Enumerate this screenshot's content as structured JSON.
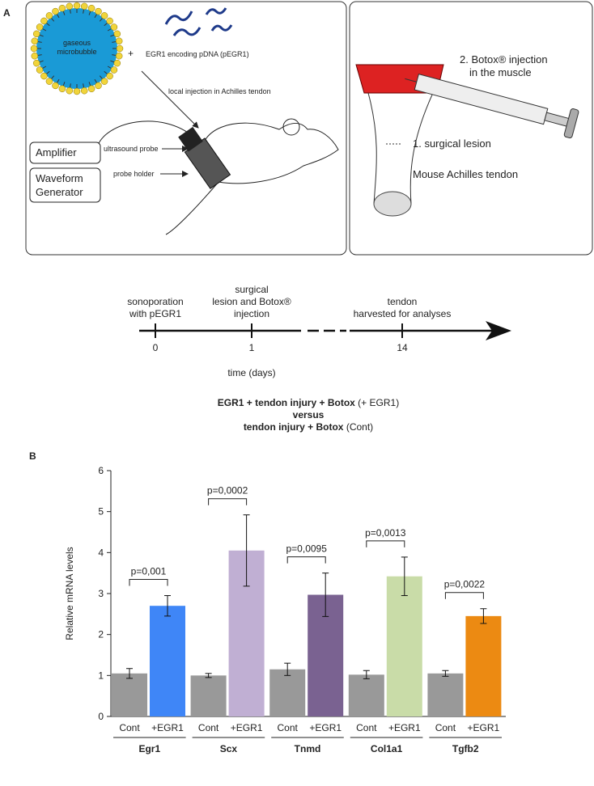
{
  "panel_a": {
    "label": "A",
    "microbubble": [
      "gaseous",
      "microbubble"
    ],
    "plus": "+",
    "plasmid": "EGR1 encoding pDNA (pEGR1)",
    "injection": "local injection in Achilles tendon",
    "amplifier": "Amplifier",
    "probe": "ultrasound probe",
    "generator": [
      "Waveform",
      "Generator"
    ],
    "holder": "probe holder",
    "botox": [
      "2. Botox® injection",
      "in the muscle"
    ],
    "lesion": "1. surgical lesion",
    "tendon": "Mouse Achilles tendon"
  },
  "timeline": {
    "events": [
      {
        "text": [
          "sonoporation",
          "with pEGR1"
        ],
        "tick": "0"
      },
      {
        "text": [
          "surgical",
          "lesion and Botox®",
          "injection"
        ],
        "tick": "1"
      },
      {
        "text": [
          "tendon",
          "harvested for analyses"
        ],
        "tick": "14"
      }
    ],
    "axis_label": "time (days)"
  },
  "chart_data": {
    "type": "bar",
    "panel_label": "B",
    "title": [
      {
        "bold": "EGR1 + tendon injury + Botox",
        "normal": "(+ EGR1)"
      },
      {
        "bold": "versus"
      },
      {
        "bold": "tendon injury + Botox",
        "normal": "(Cont)"
      }
    ],
    "ylabel": "Relative mRNA levels",
    "categories": [
      "Egr1",
      "Scx",
      "Tnmd",
      "Col1a1",
      "Tgfb2"
    ],
    "series": [
      {
        "name": "Cont",
        "color": "#999999",
        "values": [
          1.05,
          1.0,
          1.15,
          1.02,
          1.05
        ],
        "errors": [
          0.12,
          0.05,
          0.15,
          0.1,
          0.07
        ]
      },
      {
        "name": "+EGR1",
        "colors": [
          "#3f86f7",
          "#c0afd3",
          "#7a6291",
          "#c9dca8",
          "#ec8a12"
        ],
        "values": [
          2.7,
          4.05,
          2.97,
          3.42,
          2.45
        ],
        "errors": [
          0.25,
          0.87,
          0.53,
          0.47,
          0.18
        ]
      }
    ],
    "p_values": [
      "p=0,001",
      "p=0,0002",
      "p=0,0095",
      "p=0,0013",
      "p=0,0022"
    ],
    "ylim": [
      0,
      6
    ],
    "yticks": [
      0,
      1,
      2,
      3,
      4,
      5,
      6
    ]
  }
}
